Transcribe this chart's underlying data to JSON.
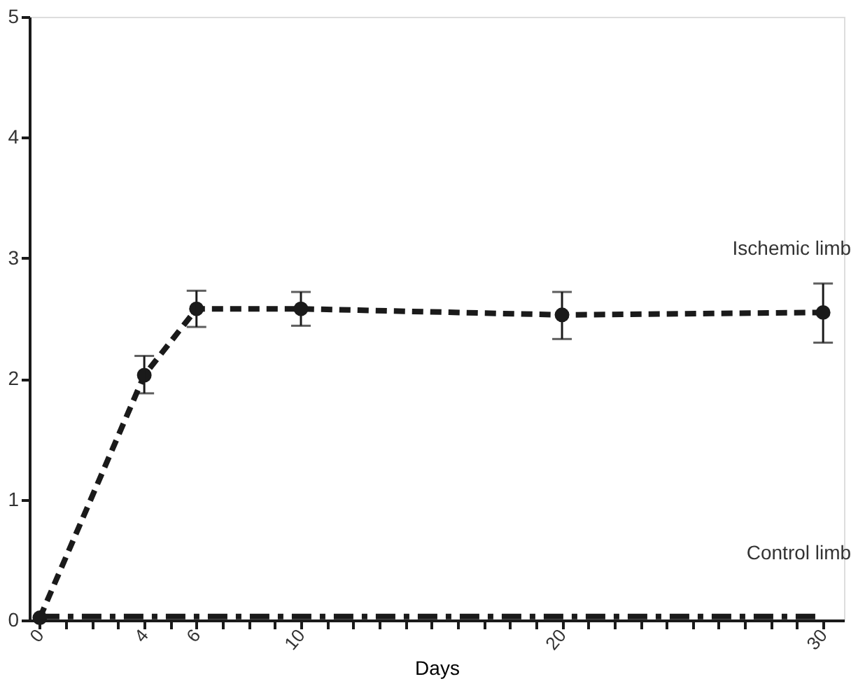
{
  "chart_data": {
    "type": "line",
    "xlabel": "Days",
    "x": [
      0,
      4,
      6,
      10,
      20,
      30
    ],
    "series": [
      {
        "name": "Ischemic limb",
        "color": "#1a1a1a",
        "values": [
          0.02,
          2.03,
          2.58,
          2.58,
          2.53,
          2.55
        ],
        "errors": [
          null,
          [
            1.88,
            2.19
          ],
          [
            2.43,
            2.73
          ],
          [
            2.44,
            2.72
          ],
          [
            2.33,
            2.72
          ],
          [
            2.3,
            2.79
          ]
        ],
        "marker": "circle",
        "line_style": "dashed"
      },
      {
        "name": "Control limb",
        "color": "#1a1a1a",
        "values": [
          0.03,
          0.03,
          0.03,
          0.03,
          0.03,
          0.03
        ],
        "marker": "none",
        "line_style": "dashdot"
      }
    ],
    "xlim": [
      -0.4,
      30.8
    ],
    "ylim": [
      0,
      5
    ],
    "xticks": [
      0,
      {
        "value": 1,
        "label": null
      },
      {
        "value": 2,
        "label": null
      },
      {
        "value": 3,
        "label": null
      },
      4,
      {
        "value": 5,
        "label": null
      },
      6,
      {
        "value": 7,
        "label": null
      },
      {
        "value": 8,
        "label": null
      },
      {
        "value": 9,
        "label": null
      },
      10,
      {
        "value": 11,
        "label": null
      },
      {
        "value": 12,
        "label": null
      },
      {
        "value": 13,
        "label": null
      },
      {
        "value": 14,
        "label": null
      },
      {
        "value": 15,
        "label": null
      },
      {
        "value": 16,
        "label": null
      },
      {
        "value": 17,
        "label": null
      },
      {
        "value": 18,
        "label": null
      },
      {
        "value": 19,
        "label": null
      },
      20,
      {
        "value": 21,
        "label": null
      },
      {
        "value": 22,
        "label": null
      },
      {
        "value": 23,
        "label": null
      },
      {
        "value": 24,
        "label": null
      },
      {
        "value": 25,
        "label": null
      },
      {
        "value": 26,
        "label": null
      },
      {
        "value": 27,
        "label": null
      },
      {
        "value": 28,
        "label": null
      },
      {
        "value": 29,
        "label": null
      },
      30
    ],
    "yticks": [
      0,
      1,
      2,
      3,
      4,
      5
    ],
    "grid": false
  }
}
